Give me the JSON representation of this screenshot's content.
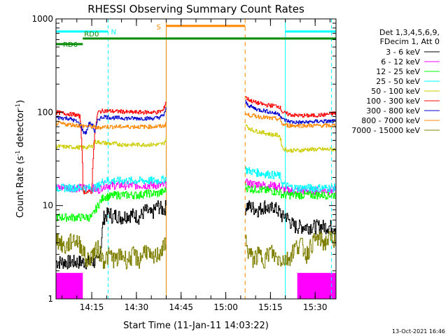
{
  "chart_data": {
    "type": "line",
    "title": "RHESSI Observing Summary Count Rates",
    "xlabel": "Start Time (11-Jan-11 14:03:22)",
    "ylabel": "Count Rate (s",
    "ylabel_sup1": "-1",
    "ylabel_mid": " detector",
    "ylabel_sup2": "-1",
    "ylabel_end": ")",
    "y_scale": "log",
    "ylim": [
      1,
      1000
    ],
    "xlim_minutes": [
      0,
      94
    ],
    "x_ticks": [
      {
        "m": 12,
        "label": "14:15"
      },
      {
        "m": 27,
        "label": "14:30"
      },
      {
        "m": 42,
        "label": "14:45"
      },
      {
        "m": 57,
        "label": "15:00"
      },
      {
        "m": 72,
        "label": "15:15"
      },
      {
        "m": 87,
        "label": "15:30"
      }
    ],
    "y_ticks": [
      {
        "v": 1,
        "label": "1"
      },
      {
        "v": 10,
        "label": "10"
      },
      {
        "v": 100,
        "label": "100"
      },
      {
        "v": 1000,
        "label": "1000"
      }
    ],
    "legend_header": [
      "Det 1,3,4,5,6,9,",
      "FDecim 1, Att 0"
    ],
    "legend_position": "right",
    "gaps_minutes": [
      [
        37,
        63.5
      ]
    ],
    "series": [
      {
        "name": "3 - 6 keV",
        "color": "#000000",
        "x": [
          0,
          14,
          15,
          16,
          17,
          18,
          19,
          20,
          22,
          24,
          26,
          28,
          30,
          32,
          33,
          34,
          36,
          37,
          63.5,
          64,
          66,
          68,
          70,
          72,
          73,
          74,
          75,
          76,
          77,
          78,
          79,
          80,
          82,
          84,
          86,
          88,
          90,
          92,
          94
        ],
        "y": [
          2.5,
          2.5,
          3.5,
          7.5,
          8,
          8.5,
          7.5,
          8,
          7.5,
          8,
          8,
          7.5,
          9,
          8,
          9,
          10,
          9,
          10,
          9.5,
          10,
          9.5,
          9,
          10,
          9,
          10,
          9,
          8.5,
          7.5,
          8,
          7,
          6.5,
          6,
          6,
          6,
          6,
          6,
          6,
          6,
          6
        ]
      },
      {
        "name": "6 - 12 keV",
        "color": "#ff00ff",
        "x": [
          0,
          12,
          14,
          16,
          18,
          20,
          22,
          24,
          26,
          28,
          30,
          32,
          34,
          36,
          37,
          63.5,
          64,
          66,
          68,
          70,
          72,
          74,
          75,
          76,
          78,
          80,
          82,
          84,
          86,
          88,
          90,
          92,
          94
        ],
        "y": [
          15.5,
          15.5,
          14.5,
          16.5,
          16.5,
          16.5,
          16.5,
          16.5,
          16.5,
          16.5,
          16.5,
          16.5,
          16.5,
          16.5,
          17,
          18,
          17.5,
          17,
          17,
          16.5,
          16.5,
          16,
          16,
          15,
          14.5,
          14.5,
          14.5,
          14.5,
          14.5,
          14.5,
          14.5,
          14.5,
          14.5
        ]
      },
      {
        "name": "12 - 25 keV",
        "color": "#00ff00",
        "x": [
          0,
          12,
          14,
          16,
          18,
          20,
          22,
          24,
          26,
          28,
          30,
          32,
          34,
          36,
          37,
          63.5,
          64,
          66,
          68,
          70,
          72,
          74,
          75,
          76,
          78,
          80,
          82,
          84,
          86,
          88,
          90,
          92,
          94
        ],
        "y": [
          7.5,
          7.5,
          10,
          12.5,
          12.5,
          13,
          13,
          13,
          13,
          13,
          13.5,
          13.5,
          13.5,
          14,
          15,
          16,
          15.5,
          15,
          15,
          14.5,
          14.5,
          14,
          14,
          13,
          13,
          13,
          13,
          13,
          13,
          13,
          13,
          13,
          13
        ]
      },
      {
        "name": "25 - 50 keV",
        "color": "#00ffff",
        "x": [
          0,
          12,
          14,
          16,
          18,
          20,
          22,
          24,
          26,
          28,
          30,
          32,
          34,
          36,
          37,
          63.5,
          64,
          66,
          68,
          70,
          72,
          74,
          75,
          76,
          78,
          80,
          82,
          84,
          86,
          88,
          90,
          92,
          94
        ],
        "y": [
          15.5,
          15.5,
          16,
          18.5,
          18.5,
          18.5,
          18.5,
          18.5,
          18.5,
          18.5,
          18.5,
          18.5,
          18.5,
          19,
          20,
          24.5,
          24,
          23,
          22.5,
          22,
          21.5,
          21,
          21,
          17,
          16,
          15.5,
          15.5,
          15.5,
          15.5,
          15.5,
          15.5,
          15.5,
          15.5
        ]
      },
      {
        "name": "50 - 100 keV",
        "color": "#cccc00",
        "x": [
          0,
          8,
          10,
          12,
          13,
          14,
          16,
          18,
          20,
          22,
          24,
          26,
          28,
          30,
          32,
          34,
          36,
          37,
          63.5,
          64,
          66,
          68,
          70,
          72,
          74,
          75,
          76,
          78,
          80,
          82,
          84,
          86,
          88,
          90,
          92,
          94
        ],
        "y": [
          43,
          42,
          42,
          43,
          48,
          48,
          47,
          46,
          46,
          45,
          45,
          45,
          45,
          45,
          45,
          45,
          46,
          52,
          75,
          70,
          64,
          62,
          60,
          58,
          57,
          56,
          41,
          39,
          39,
          39,
          40,
          40,
          40,
          40,
          40,
          40
        ]
      },
      {
        "name": "100 - 300 keV",
        "color": "#ff0000",
        "x": [
          0,
          4,
          6,
          8,
          9,
          10,
          12,
          13,
          14,
          16,
          18,
          20,
          22,
          24,
          26,
          28,
          30,
          32,
          34,
          36,
          37,
          63.5,
          64,
          66,
          68,
          70,
          72,
          74,
          75,
          76,
          78,
          80,
          82,
          84,
          86,
          88,
          90,
          92,
          94
        ],
        "y": [
          100,
          96,
          95,
          90,
          14,
          14,
          14,
          60,
          100,
          104,
          103,
          102,
          102,
          100,
          100,
          100,
          100,
          100,
          100,
          105,
          135,
          150,
          140,
          130,
          125,
          120,
          118,
          117,
          115,
          100,
          95,
          93,
          92,
          92,
          92,
          93,
          94,
          96,
          98
        ]
      },
      {
        "name": "300 - 800 keV",
        "color": "#0000cc",
        "x": [
          0,
          4,
          6,
          8,
          9,
          10,
          11,
          12,
          13,
          14,
          16,
          18,
          20,
          22,
          24,
          26,
          28,
          30,
          32,
          34,
          36,
          37,
          63.5,
          64,
          66,
          68,
          70,
          72,
          74,
          75,
          76,
          78,
          80,
          82,
          84,
          86,
          88,
          90,
          92,
          94
        ],
        "y": [
          88,
          86,
          82,
          75,
          62,
          60,
          75,
          75,
          60,
          84,
          90,
          88,
          87,
          87,
          86,
          86,
          86,
          86,
          86,
          87,
          92,
          112,
          130,
          122,
          112,
          106,
          104,
          100,
          97,
          96,
          84,
          80,
          78,
          78,
          78,
          79,
          80,
          80,
          80,
          80
        ]
      },
      {
        "name": "800 - 7000 keV",
        "color": "#ff8800",
        "x": [
          0,
          4,
          8,
          12,
          14,
          16,
          20,
          24,
          28,
          32,
          36,
          37,
          63.5,
          64,
          66,
          70,
          72,
          74,
          75,
          76,
          78,
          80,
          82,
          84,
          86,
          88,
          90,
          92,
          94
        ],
        "y": [
          76,
          74,
          72,
          70,
          68,
          70,
          70,
          70,
          70,
          70,
          71,
          75,
          96,
          94,
          92,
          88,
          86,
          85,
          84,
          74,
          72,
          72,
          72,
          72,
          72,
          72,
          72,
          72,
          72
        ]
      },
      {
        "name": "7000 - 15000 keV",
        "color": "#808000",
        "x": [
          0,
          3,
          6,
          9,
          10,
          12,
          14,
          16,
          18,
          20,
          22,
          24,
          26,
          28,
          30,
          32,
          34,
          36,
          37,
          63.5,
          64,
          66,
          68,
          70,
          72,
          74,
          76,
          78,
          80,
          82,
          84,
          86,
          88,
          90,
          92,
          94
        ],
        "y": [
          4.5,
          3.5,
          4.5,
          3.5,
          2.5,
          3,
          3.5,
          2.6,
          3,
          2.6,
          3,
          2.6,
          3,
          2.6,
          3.5,
          2.6,
          3,
          3.5,
          4.5,
          4.5,
          3.5,
          2.7,
          3,
          2.7,
          3.3,
          2.7,
          2.7,
          2.7,
          3.5,
          4,
          3,
          4,
          4.5,
          4,
          4.5,
          4.5
        ]
      }
    ],
    "attenuator_bars": [
      {
        "label": "N",
        "color": "#00ffff",
        "y_frac": 0.045,
        "start": 0,
        "end": 17.5
      },
      {
        "label": "N",
        "color": "#00ffff",
        "y_frac": 0.045,
        "start": 77,
        "end": 94
      },
      {
        "label": "S",
        "color": "#ff8800",
        "y_frac": 0.025,
        "start": 37,
        "end": 63.5
      },
      {
        "label": "RD0",
        "color": "#008800",
        "y_frac": 0.07,
        "start": 9,
        "end": 94
      },
      {
        "label": "RD6",
        "color": "#008800",
        "y_frac": 0.09,
        "start": 0,
        "end": 9
      }
    ],
    "cyan_dashed_lines": [
      17.5,
      92.5
    ],
    "cyan_solid_lines": [
      0,
      37,
      77
    ],
    "orange_lines": [
      {
        "m": 37,
        "dash": false
      },
      {
        "m": 63.5,
        "dash": true
      }
    ],
    "magenta_low_blocks": [
      {
        "start": 0,
        "end": 9,
        "top": 1.9
      },
      {
        "start": 81,
        "end": 94,
        "top": 1.9
      }
    ]
  },
  "footer_date": "13-Oct-2021 16:46"
}
